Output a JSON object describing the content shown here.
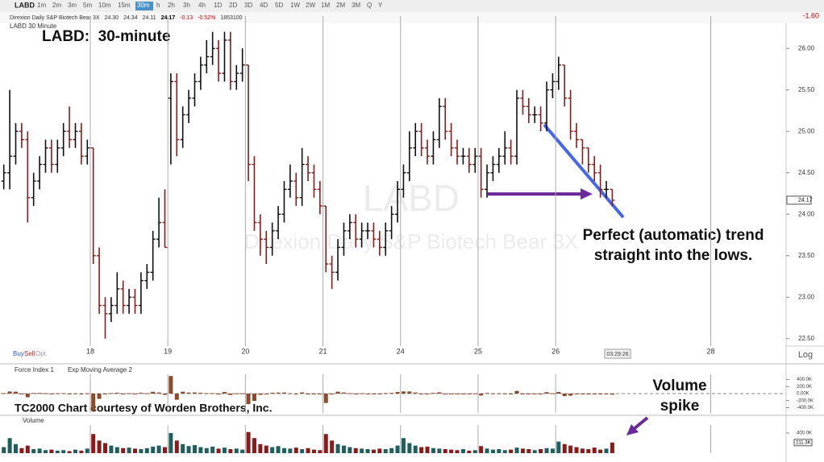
{
  "toolbar": {
    "symbol": "LABD",
    "intervals": [
      "1m",
      "2m",
      "3m",
      "5m",
      "10m",
      "15m",
      "30m",
      "h",
      "2h",
      "3h",
      "4h",
      "1D",
      "2D",
      "3D",
      "4D",
      "5D",
      "1W",
      "2W",
      "1M",
      "2M",
      "3M",
      "Q",
      "Y"
    ],
    "active": 6,
    "change": "-1.60"
  },
  "quote": {
    "name": "Direxion Daily S&P Biotech Bear 3X",
    "open": "24.30",
    "high": "24.34",
    "low": "24.11",
    "last": "24.17",
    "change": "-0.13",
    "percent": "-0.52%",
    "volume": "1853100"
  },
  "chart_data": [
    {
      "type": "ohlc",
      "title": "LABD 30 Minute",
      "heading": "LABD:  30-minute",
      "watermark_symbol": "LABD",
      "watermark_name": "Direxion Daily S&P Biotech Bear 3X",
      "open": [
        24.4,
        24.5,
        24.7,
        25.0,
        24.9,
        24.2,
        24.4,
        24.6,
        24.8,
        24.6,
        24.8,
        25.0,
        24.9,
        25.0,
        24.7,
        24.8,
        23.5,
        22.9,
        22.8,
        22.9,
        23.1,
        22.9,
        23.0,
        22.9,
        23.2,
        23.3,
        23.7,
        23.9,
        25.4,
        25.6,
        24.9,
        25.2,
        25.4,
        25.6,
        25.8,
        25.9,
        26.0,
        25.7,
        26.1,
        25.6,
        25.7,
        25.8,
        24.6,
        23.9,
        23.7,
        23.6,
        23.8,
        24.0,
        24.3,
        24.4,
        24.2,
        24.6,
        24.5,
        24.3,
        24.1,
        23.4,
        23.3,
        23.6,
        23.8,
        23.9,
        23.7,
        23.8,
        23.8,
        23.7,
        23.6,
        23.8,
        24.0,
        24.3,
        24.5,
        24.8,
        25.0,
        24.8,
        24.7,
        24.9,
        25.3,
        25.0,
        24.8,
        24.7,
        24.7,
        24.6,
        24.7,
        24.3,
        24.5,
        24.6,
        24.7,
        24.8,
        24.7,
        25.4,
        25.3,
        25.2,
        25.2,
        25.1,
        25.5,
        25.6,
        25.8,
        25.4,
        25.0,
        24.9,
        24.8,
        24.6,
        24.5,
        24.3,
        24.3
      ],
      "high": [
        24.6,
        25.5,
        25.1,
        25.1,
        25.0,
        24.5,
        24.7,
        24.9,
        24.9,
        24.9,
        25.1,
        25.3,
        25.1,
        25.1,
        24.9,
        24.8,
        23.6,
        23.0,
        23.0,
        23.3,
        23.2,
        23.1,
        23.1,
        23.3,
        23.4,
        23.8,
        24.2,
        24.3,
        25.7,
        25.7,
        25.3,
        25.5,
        25.7,
        25.9,
        26.1,
        26.2,
        26.1,
        26.2,
        26.2,
        25.8,
        26.0,
        25.8,
        24.7,
        24.0,
        23.8,
        23.9,
        24.1,
        24.4,
        24.6,
        24.5,
        24.8,
        24.7,
        24.6,
        24.4,
        24.1,
        23.5,
        23.7,
        23.9,
        24.0,
        24.0,
        23.9,
        23.9,
        23.9,
        23.8,
        23.9,
        24.1,
        24.4,
        24.6,
        25.0,
        25.1,
        25.1,
        24.9,
        25.0,
        25.4,
        25.4,
        25.1,
        24.9,
        24.8,
        24.8,
        24.8,
        24.8,
        24.6,
        24.7,
        24.8,
        25.0,
        24.9,
        25.5,
        25.5,
        25.4,
        25.3,
        25.3,
        25.6,
        25.7,
        25.9,
        25.8,
        25.5,
        25.1,
        24.9,
        24.8,
        24.7,
        24.6,
        24.4,
        24.3
      ],
      "low": [
        24.3,
        24.3,
        24.6,
        24.8,
        23.9,
        24.1,
        24.3,
        24.5,
        24.5,
        24.5,
        24.7,
        24.8,
        24.8,
        24.6,
        24.6,
        23.4,
        22.8,
        22.5,
        22.7,
        22.8,
        22.8,
        22.8,
        22.8,
        22.8,
        23.1,
        23.2,
        23.6,
        23.6,
        24.6,
        24.7,
        24.8,
        25.1,
        25.3,
        25.5,
        25.7,
        25.8,
        25.6,
        25.6,
        25.5,
        25.5,
        25.6,
        24.4,
        23.8,
        23.5,
        23.4,
        23.5,
        23.7,
        23.9,
        24.2,
        24.1,
        24.1,
        24.4,
        24.2,
        24.0,
        23.3,
        23.1,
        23.2,
        23.5,
        23.7,
        23.6,
        23.6,
        23.7,
        23.6,
        23.5,
        23.5,
        23.7,
        23.9,
        24.2,
        24.4,
        24.7,
        24.7,
        24.6,
        24.6,
        24.8,
        24.9,
        24.7,
        24.6,
        24.6,
        24.5,
        24.5,
        24.2,
        24.2,
        24.4,
        24.5,
        24.6,
        24.6,
        24.6,
        25.2,
        25.1,
        25.1,
        25.0,
        25.0,
        25.4,
        25.5,
        25.3,
        24.9,
        24.8,
        24.6,
        24.5,
        24.4,
        24.2,
        24.2,
        24.1
      ],
      "close": [
        24.5,
        24.7,
        25.0,
        24.9,
        24.2,
        24.4,
        24.6,
        24.8,
        24.6,
        24.8,
        25.0,
        24.9,
        25.0,
        24.7,
        24.8,
        23.5,
        22.9,
        22.8,
        22.9,
        23.1,
        22.9,
        23.0,
        22.9,
        23.2,
        23.3,
        23.7,
        23.9,
        23.6,
        25.6,
        24.9,
        25.2,
        25.4,
        25.6,
        25.8,
        25.9,
        26.0,
        25.7,
        26.1,
        25.6,
        25.7,
        25.8,
        24.6,
        23.9,
        23.7,
        23.6,
        23.8,
        24.0,
        24.3,
        24.4,
        24.2,
        24.6,
        24.5,
        24.3,
        24.1,
        23.4,
        23.3,
        23.6,
        23.8,
        23.9,
        23.7,
        23.8,
        23.8,
        23.7,
        23.6,
        23.8,
        24.0,
        24.3,
        24.5,
        24.8,
        25.0,
        24.8,
        24.7,
        24.9,
        25.3,
        25.0,
        24.8,
        24.7,
        24.7,
        24.6,
        24.7,
        24.3,
        24.5,
        24.6,
        24.7,
        24.8,
        24.7,
        25.4,
        25.3,
        25.2,
        25.2,
        25.1,
        25.5,
        25.6,
        25.8,
        25.4,
        25.0,
        24.9,
        24.8,
        24.6,
        24.5,
        24.3,
        24.3,
        24.17
      ],
      "up_color": "#111111",
      "down_color": "#8b1a1a",
      "xlim": [
        -0.5,
        131
      ],
      "xticks": [
        {
          "value": 14.5,
          "label": "18"
        },
        {
          "value": 27.5,
          "label": "19"
        },
        {
          "value": 40.5,
          "label": "20"
        },
        {
          "value": 53.5,
          "label": "21"
        },
        {
          "value": 66.5,
          "label": "24"
        },
        {
          "value": 79.5,
          "label": "25"
        },
        {
          "value": 92.5,
          "label": "26"
        },
        {
          "value": 118.5,
          "label": "28"
        }
      ],
      "ylim": [
        22.41,
        26.39
      ],
      "yticks": [
        {
          "value": 22.5,
          "label": "22.50"
        },
        {
          "value": 23,
          "label": "23.00"
        },
        {
          "value": 23.5,
          "label": "23.50"
        },
        {
          "value": 24,
          "label": "24.00"
        },
        {
          "value": 24.5,
          "label": "24.50"
        },
        {
          "value": 25,
          "label": "25.00"
        },
        {
          "value": 25.5,
          "label": "25.50"
        },
        {
          "value": 26,
          "label": "26.00"
        }
      ],
      "last_label": "24.17",
      "trade_buttons": [
        "Buy",
        "Sell",
        "Opt"
      ],
      "scale_label": "Log",
      "time_label": "03:29:26",
      "trend_note": [
        "Perfect (automatic) trend",
        "straight into the lows."
      ],
      "credit": "TC2000 Chart courtesy of Worden Brothers, Inc.",
      "volume_note": [
        "Volume",
        "spike"
      ]
    },
    {
      "type": "bar",
      "title": "Force Index 1",
      "overlay": "Exp Moving Average 2",
      "color": "#8b4a2b",
      "values": [
        12000,
        60000,
        54000,
        -10000,
        -105000,
        16000,
        18000,
        12000,
        -14000,
        10000,
        12000,
        -4000,
        7000,
        -15000,
        9000,
        -494000,
        -150000,
        -20000,
        15000,
        24000,
        -20000,
        11000,
        -9000,
        24000,
        10000,
        52000,
        30000,
        -36000,
        500000,
        -175000,
        54000,
        28000,
        32000,
        24000,
        10000,
        13000,
        -27000,
        44000,
        -40000,
        9000,
        7000,
        -300000,
        -210000,
        -36000,
        -15000,
        24000,
        28000,
        30000,
        9000,
        -22000,
        32000,
        -10000,
        -14000,
        -12000,
        -266000,
        -25000,
        54000,
        30000,
        12000,
        -20000,
        9000,
        0,
        -7000,
        -9000,
        16000,
        20000,
        45000,
        60000,
        60000,
        30000,
        -24000,
        -13000,
        20000,
        36000,
        -24000,
        -14000,
        -6000,
        0,
        -5000,
        6000,
        -56000,
        18000,
        7000,
        8000,
        6000,
        -7000,
        77000,
        -9000,
        -8000,
        0,
        -8000,
        40000,
        9000,
        46000,
        -72000,
        -60000,
        -12000,
        -9000,
        -16000,
        -11000,
        -14000,
        0,
        -30000
      ],
      "ylim": [
        -550000,
        550000
      ],
      "yticks": [
        {
          "value": 400000,
          "label": "400.0K"
        },
        {
          "value": 200000,
          "label": "200.0K"
        },
        {
          "value": 0,
          "label": "0.00K"
        },
        {
          "value": -200000,
          "label": "-200.0K"
        },
        {
          "value": -400000,
          "label": "-400.0K"
        }
      ]
    },
    {
      "type": "volume",
      "title": "Volume",
      "up_color": "#1f5f5f",
      "down_color": "#8b1a1a",
      "values": [
        120000,
        300000,
        180000,
        100000,
        150000,
        80000,
        90000,
        60000,
        70000,
        50000,
        60000,
        40000,
        70000,
        50000,
        90000,
        380000,
        250000,
        200000,
        150000,
        120000,
        100000,
        110000,
        90000,
        80000,
        100000,
        130000,
        150000,
        120000,
        400000,
        250000,
        180000,
        140000,
        160000,
        120000,
        100000,
        130000,
        90000,
        110000,
        80000,
        90000,
        70000,
        420000,
        300000,
        180000,
        150000,
        120000,
        140000,
        100000,
        90000,
        110000,
        80000,
        100000,
        70000,
        60000,
        380000,
        250000,
        180000,
        150000,
        120000,
        100000,
        90000,
        80000,
        70000,
        90000,
        80000,
        100000,
        150000,
        300000,
        200000,
        150000,
        120000,
        130000,
        100000,
        90000,
        80000,
        70000,
        60000,
        80000,
        50000,
        60000,
        140000,
        90000,
        70000,
        80000,
        60000,
        70000,
        110000,
        90000,
        80000,
        60000,
        80000,
        100000,
        90000,
        230000,
        180000,
        150000,
        120000,
        90000,
        80000,
        110000,
        70000,
        90000,
        211300
      ],
      "ylim": [
        0,
        560000
      ],
      "yticks": [
        {
          "value": 400000,
          "label": "400.0K"
        }
      ],
      "last_label": "211.3K"
    }
  ]
}
